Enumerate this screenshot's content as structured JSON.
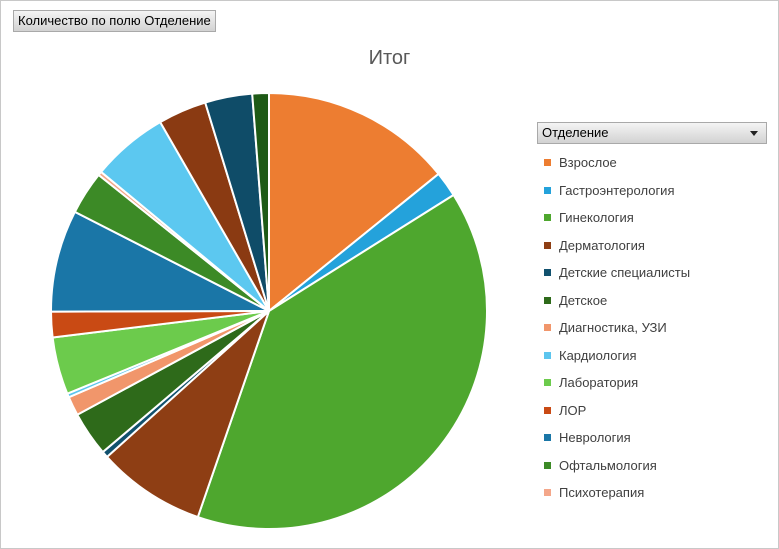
{
  "field_button": {
    "label": "Количество по полю Отделение"
  },
  "legend": {
    "header": "Отделение"
  },
  "chart_data": {
    "type": "pie",
    "title": "Итог",
    "legend_position": "right",
    "series": [
      {
        "name": "Взрослое",
        "value": 15.0,
        "color": "#ED7D31"
      },
      {
        "name": "Гастроэнтерология",
        "value": 2.0,
        "color": "#24A2DB"
      },
      {
        "name": "Гинекология",
        "value": 41.5,
        "color": "#4EA72E"
      },
      {
        "name": "Дерматология",
        "value": 8.5,
        "color": "#8E3E14"
      },
      {
        "name": "Детские специалисты",
        "value": 0.5,
        "color": "#11516E"
      },
      {
        "name": "Детское",
        "value": 3.5,
        "color": "#2E6A1A"
      },
      {
        "name": "Диагностика, УЗИ",
        "value": 1.5,
        "color": "#F1966B"
      },
      {
        "name": "Кардиология",
        "value": 0.3,
        "color": "#5CC5EE"
      },
      {
        "name": "Лаборатория",
        "value": 4.5,
        "color": "#6CCB4C"
      },
      {
        "name": "ЛОР",
        "value": 2.0,
        "color": "#C94A14"
      },
      {
        "name": "Неврология",
        "value": 8.0,
        "color": "#1A76A7"
      },
      {
        "name": "Офтальмология",
        "value": 3.4,
        "color": "#3C8A26"
      },
      {
        "name": "Психотерапия",
        "value": 0.3,
        "color": "#F4A78A"
      },
      {
        "name": "",
        "value": 6.0,
        "color": "#5CC8F0"
      },
      {
        "name": "",
        "value": 3.8,
        "color": "#8A3A12"
      },
      {
        "name": "",
        "value": 3.7,
        "color": "#0F4C68"
      },
      {
        "name": "",
        "value": 1.3,
        "color": "#1E5A16"
      }
    ]
  }
}
